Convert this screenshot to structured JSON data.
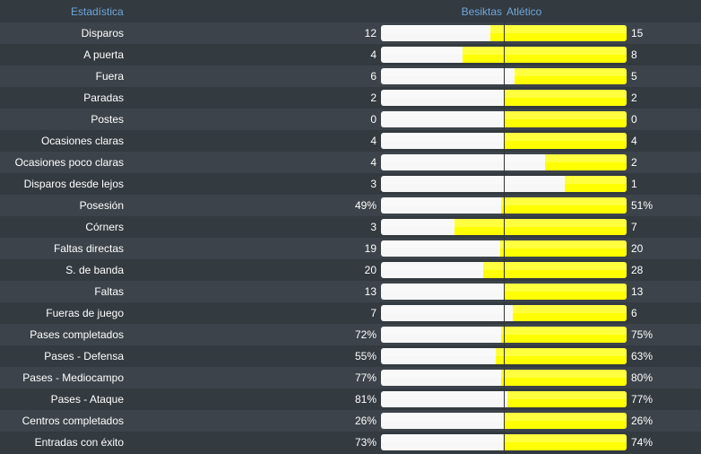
{
  "header": {
    "stat_label": "Estadística",
    "home_team": "Besiktas",
    "away_team": "Atlético"
  },
  "colors": {
    "home_bar": "#f7f7f7",
    "away_bar": "#ffff00",
    "header_text": "#6fa8dc",
    "background": "#333a40"
  },
  "stats": [
    {
      "label": "Disparos",
      "home": "12",
      "away": "15",
      "away_share": 0.556
    },
    {
      "label": "A puerta",
      "home": "4",
      "away": "8",
      "away_share": 0.667
    },
    {
      "label": "Fuera",
      "home": "6",
      "away": "5",
      "away_share": 0.455
    },
    {
      "label": "Paradas",
      "home": "2",
      "away": "2",
      "away_share": 0.5
    },
    {
      "label": "Postes",
      "home": "0",
      "away": "0",
      "away_share": 0.5
    },
    {
      "label": "Ocasiones claras",
      "home": "4",
      "away": "4",
      "away_share": 0.5
    },
    {
      "label": "Ocasiones poco claras",
      "home": "4",
      "away": "2",
      "away_share": 0.333
    },
    {
      "label": "Disparos desde lejos",
      "home": "3",
      "away": "1",
      "away_share": 0.25
    },
    {
      "label": "Posesión",
      "home": "49%",
      "away": "51%",
      "away_share": 0.51
    },
    {
      "label": "Córners",
      "home": "3",
      "away": "7",
      "away_share": 0.7
    },
    {
      "label": "Faltas directas",
      "home": "19",
      "away": "20",
      "away_share": 0.513
    },
    {
      "label": "S. de banda",
      "home": "20",
      "away": "28",
      "away_share": 0.583
    },
    {
      "label": "Faltas",
      "home": "13",
      "away": "13",
      "away_share": 0.5
    },
    {
      "label": "Fueras de juego",
      "home": "7",
      "away": "6",
      "away_share": 0.462
    },
    {
      "label": "Pases completados",
      "home": "72%",
      "away": "75%",
      "away_share": 0.51
    },
    {
      "label": "Pases - Defensa",
      "home": "55%",
      "away": "63%",
      "away_share": 0.534
    },
    {
      "label": "Pases - Mediocampo",
      "home": "77%",
      "away": "80%",
      "away_share": 0.51
    },
    {
      "label": "Pases - Ataque",
      "home": "81%",
      "away": "77%",
      "away_share": 0.487
    },
    {
      "label": "Centros completados",
      "home": "26%",
      "away": "26%",
      "away_share": 0.5
    },
    {
      "label": "Entradas con éxito",
      "home": "73%",
      "away": "74%",
      "away_share": 0.503
    }
  ]
}
